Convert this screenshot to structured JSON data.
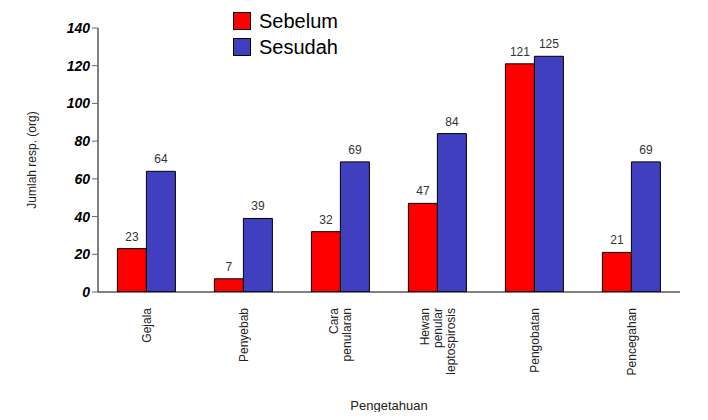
{
  "chart_data": {
    "type": "bar",
    "categories": [
      "Gejala",
      "Penyebab",
      "Cara penularan",
      "Hewan penular leptospirosis",
      "Pengobatan",
      "Pencegahan"
    ],
    "series": [
      {
        "name": "Sebelum",
        "color": "#ff0000",
        "values": [
          23,
          7,
          32,
          47,
          121,
          21
        ]
      },
      {
        "name": "Sesudah",
        "color": "#3f3fbf",
        "values": [
          64,
          39,
          69,
          84,
          125,
          69
        ]
      }
    ],
    "x_label": "Pengetahuan",
    "y_label": "Jumlah resp. (org)",
    "ylim": [
      0,
      140
    ],
    "yticks": [
      0,
      20,
      40,
      60,
      80,
      100,
      120,
      140
    ],
    "grid": false,
    "legend": "top",
    "data_labels": true
  }
}
